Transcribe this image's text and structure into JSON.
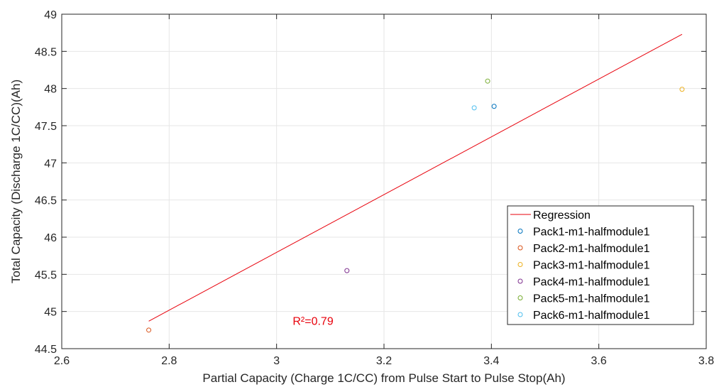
{
  "chart_data": {
    "type": "scatter",
    "title": "",
    "xlabel": "Partial Capacity (Charge 1C/CC) from Pulse Start to Pulse Stop(Ah)",
    "ylabel": "Total Capacity (Discharge 1C/CC)(Ah)",
    "xlim": [
      2.6,
      3.8
    ],
    "ylim": [
      44.5,
      49
    ],
    "xticks": [
      2.6,
      2.8,
      3,
      3.2,
      3.4,
      3.6,
      3.8
    ],
    "xtick_labels": [
      "2.6",
      "2.8",
      "3",
      "3.2",
      "3.4",
      "3.6",
      "3.8"
    ],
    "yticks": [
      44.5,
      45,
      45.5,
      46,
      46.5,
      47,
      47.5,
      48,
      48.5,
      49
    ],
    "ytick_labels": [
      "44.5",
      "45",
      "45.5",
      "46",
      "46.5",
      "47",
      "47.5",
      "48",
      "48.5",
      "49"
    ],
    "grid": true,
    "legend_position": "bottom-right",
    "regression": {
      "name": "Regression",
      "color": "#e8000b",
      "x": [
        2.762,
        3.755
      ],
      "y": [
        44.87,
        48.73
      ]
    },
    "annotation": {
      "text": "R²=0.79",
      "x": 3.03,
      "y": 44.82,
      "color": "#e8000b"
    },
    "series": [
      {
        "name": "Pack1-m1-halfmodule1",
        "color": "#0072BD",
        "x": [
          3.405
        ],
        "y": [
          47.76
        ]
      },
      {
        "name": "Pack2-m1-halfmodule1",
        "color": "#D95319",
        "x": [
          2.762
        ],
        "y": [
          44.75
        ]
      },
      {
        "name": "Pack3-m1-halfmodule1",
        "color": "#EDB120",
        "x": [
          3.755
        ],
        "y": [
          47.99
        ]
      },
      {
        "name": "Pack4-m1-halfmodule1",
        "color": "#7E2F8E",
        "x": [
          3.131
        ],
        "y": [
          45.55
        ]
      },
      {
        "name": "Pack5-m1-halfmodule1",
        "color": "#77AC30",
        "x": [
          3.393
        ],
        "y": [
          48.1
        ]
      },
      {
        "name": "Pack6-m1-halfmodule1",
        "color": "#4DBEEE",
        "x": [
          3.368
        ],
        "y": [
          47.74
        ]
      }
    ]
  }
}
